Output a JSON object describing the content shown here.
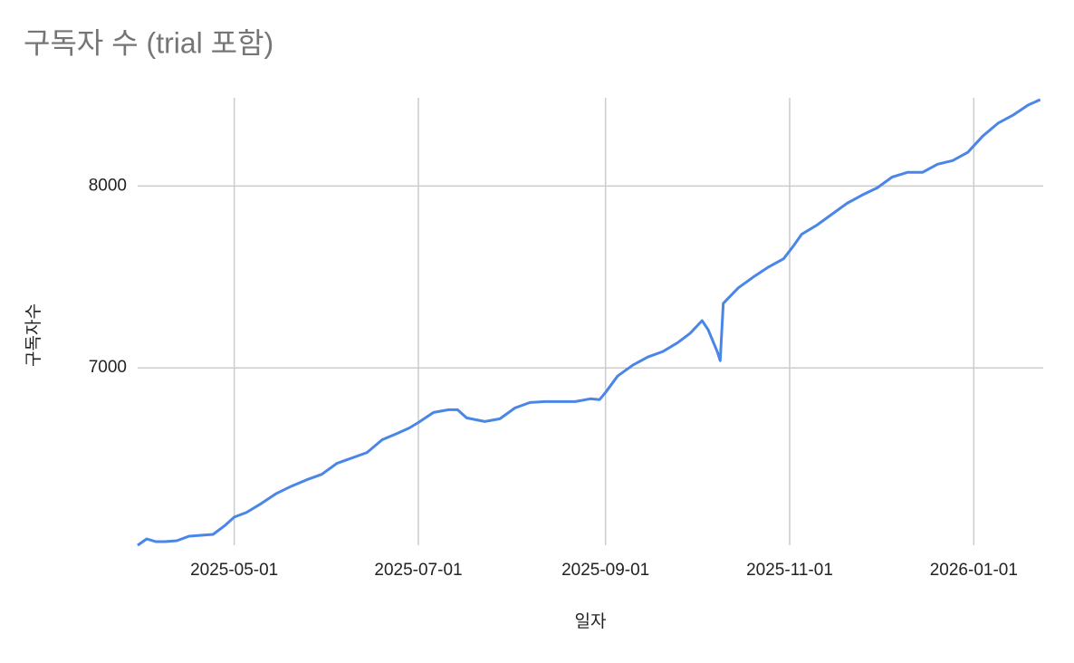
{
  "chart_data": {
    "type": "line",
    "title": "구독자 수 (trial 포함)",
    "x_label": "일자",
    "y_label": "구독자수",
    "x": [
      "2025-03-30",
      "2025-04-02",
      "2025-04-05",
      "2025-04-08",
      "2025-04-12",
      "2025-04-16",
      "2025-04-20",
      "2025-04-24",
      "2025-04-28",
      "2025-05-01",
      "2025-05-05",
      "2025-05-10",
      "2025-05-15",
      "2025-05-20",
      "2025-05-25",
      "2025-05-30",
      "2025-06-04",
      "2025-06-09",
      "2025-06-14",
      "2025-06-19",
      "2025-06-24",
      "2025-06-28",
      "2025-07-01",
      "2025-07-06",
      "2025-07-11",
      "2025-07-14",
      "2025-07-17",
      "2025-07-23",
      "2025-07-28",
      "2025-08-02",
      "2025-08-07",
      "2025-08-12",
      "2025-08-17",
      "2025-08-22",
      "2025-08-27",
      "2025-08-30",
      "2025-09-01",
      "2025-09-05",
      "2025-09-10",
      "2025-09-15",
      "2025-09-20",
      "2025-09-25",
      "2025-09-29",
      "2025-10-03",
      "2025-10-05",
      "2025-10-08",
      "2025-10-09",
      "2025-10-10",
      "2025-10-15",
      "2025-10-20",
      "2025-10-25",
      "2025-10-30",
      "2025-11-02",
      "2025-11-05",
      "2025-11-10",
      "2025-11-15",
      "2025-11-20",
      "2025-11-25",
      "2025-11-30",
      "2025-12-05",
      "2025-12-10",
      "2025-12-15",
      "2025-12-20",
      "2025-12-25",
      "2025-12-30",
      "2026-01-04",
      "2026-01-09",
      "2026-01-14",
      "2026-01-19",
      "2026-01-23"
    ],
    "series": [
      {
        "name": "구독자수",
        "color": "#4a86e8",
        "values": [
          6025,
          6060,
          6045,
          6045,
          6050,
          6075,
          6080,
          6085,
          6135,
          6180,
          6205,
          6255,
          6310,
          6350,
          6385,
          6415,
          6475,
          6505,
          6535,
          6605,
          6640,
          6670,
          6700,
          6755,
          6770,
          6770,
          6725,
          6705,
          6720,
          6780,
          6810,
          6815,
          6815,
          6815,
          6830,
          6825,
          6865,
          6955,
          7015,
          7060,
          7090,
          7140,
          7190,
          7260,
          7210,
          7090,
          7040,
          7355,
          7440,
          7500,
          7555,
          7600,
          7665,
          7735,
          7785,
          7845,
          7905,
          7950,
          7990,
          8050,
          8075,
          8075,
          8120,
          8140,
          8185,
          8275,
          8345,
          8390,
          8445,
          8475
        ]
      }
    ],
    "xlim": [
      "2025-03-30",
      "2026-01-24"
    ],
    "xticks": [
      "2025-05-01",
      "2025-07-01",
      "2025-09-01",
      "2025-11-01",
      "2026-01-01"
    ],
    "ylim": [
      6025,
      8485
    ],
    "yticks": [
      7000,
      8000
    ],
    "grid": true
  }
}
